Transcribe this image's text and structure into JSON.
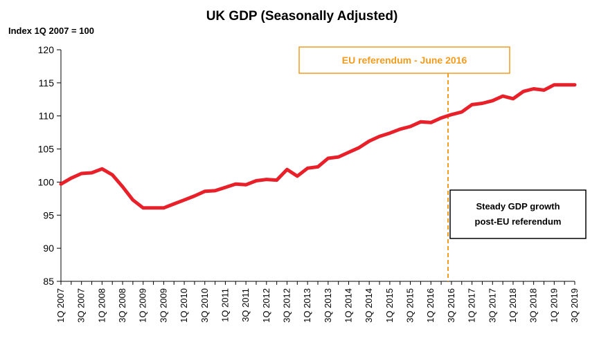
{
  "chart_data": {
    "type": "line",
    "title": "UK GDP (Seasonally Adjusted)",
    "ylabel": "Index 1Q 2007 = 100",
    "xlabel": "",
    "ylim": [
      85,
      120
    ],
    "yticks": [
      85,
      90,
      95,
      100,
      105,
      110,
      115,
      120
    ],
    "grid": false,
    "x_tick_labels": [
      "1Q 2007",
      "3Q 2007",
      "1Q 2008",
      "3Q 2008",
      "1Q 2009",
      "3Q 2009",
      "1Q 2010",
      "3Q 2010",
      "1Q 2011",
      "3Q 2011",
      "1Q 2012",
      "3Q 2012",
      "1Q 2013",
      "3Q 2013",
      "1Q 2014",
      "3Q 2014",
      "1Q 2015",
      "3Q 2015",
      "1Q 2016",
      "3Q 2016",
      "1Q 2017",
      "3Q 2017",
      "1Q 2018",
      "3Q 2018",
      "1Q 2019",
      "3Q 2019"
    ],
    "series": [
      {
        "color": "#e8202a",
        "values": [
          99.7,
          100.6,
          101.3,
          101.4,
          102.0,
          101.1,
          99.3,
          97.3,
          96.1,
          96.1,
          96.1,
          96.7,
          97.3,
          97.9,
          98.6,
          98.7,
          99.2,
          99.7,
          99.6,
          100.2,
          100.4,
          100.3,
          101.9,
          100.9,
          102.1,
          102.3,
          103.6,
          103.8,
          104.5,
          105.2,
          106.2,
          106.9,
          107.4,
          108.0,
          108.4,
          109.1,
          109.0,
          109.7,
          110.2,
          110.6,
          111.7,
          111.9,
          112.3,
          113.0,
          112.6,
          113.7,
          114.1,
          113.9,
          114.7,
          114.7,
          114.7
        ]
      }
    ],
    "annotations": [
      {
        "text": "EU referendum - June 2016",
        "x_index": 37.67,
        "color": "#f29b1d",
        "style": "dashed-vertical-line"
      },
      {
        "text_lines": [
          "Steady GDP growth",
          "post-EU referendum"
        ]
      }
    ]
  }
}
